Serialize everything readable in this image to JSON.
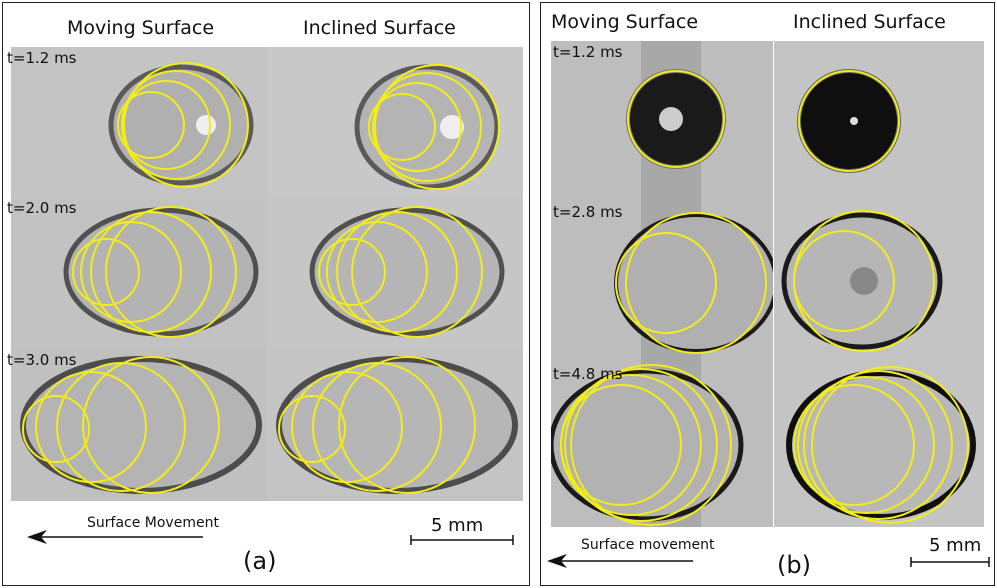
{
  "panel_a": {
    "headers": [
      "Moving Surface",
      "Inclined Surface"
    ],
    "times": [
      "t=1.2 ms",
      "t=2.0 ms",
      "t=3.0 ms"
    ],
    "movement_label": "Surface Movement",
    "scale_label": "5 mm",
    "panel_label": "(a)"
  },
  "panel_b": {
    "headers": [
      "Moving Surface",
      "Inclined Surface"
    ],
    "times": [
      "t=1.2 ms",
      "t=2.8 ms",
      "t=4.8 ms"
    ],
    "movement_label": "Surface movement",
    "scale_label": "5 mm",
    "panel_label": "(b)"
  },
  "colors": {
    "fit_circle": "#f2ec1a",
    "frame": "#222222"
  }
}
